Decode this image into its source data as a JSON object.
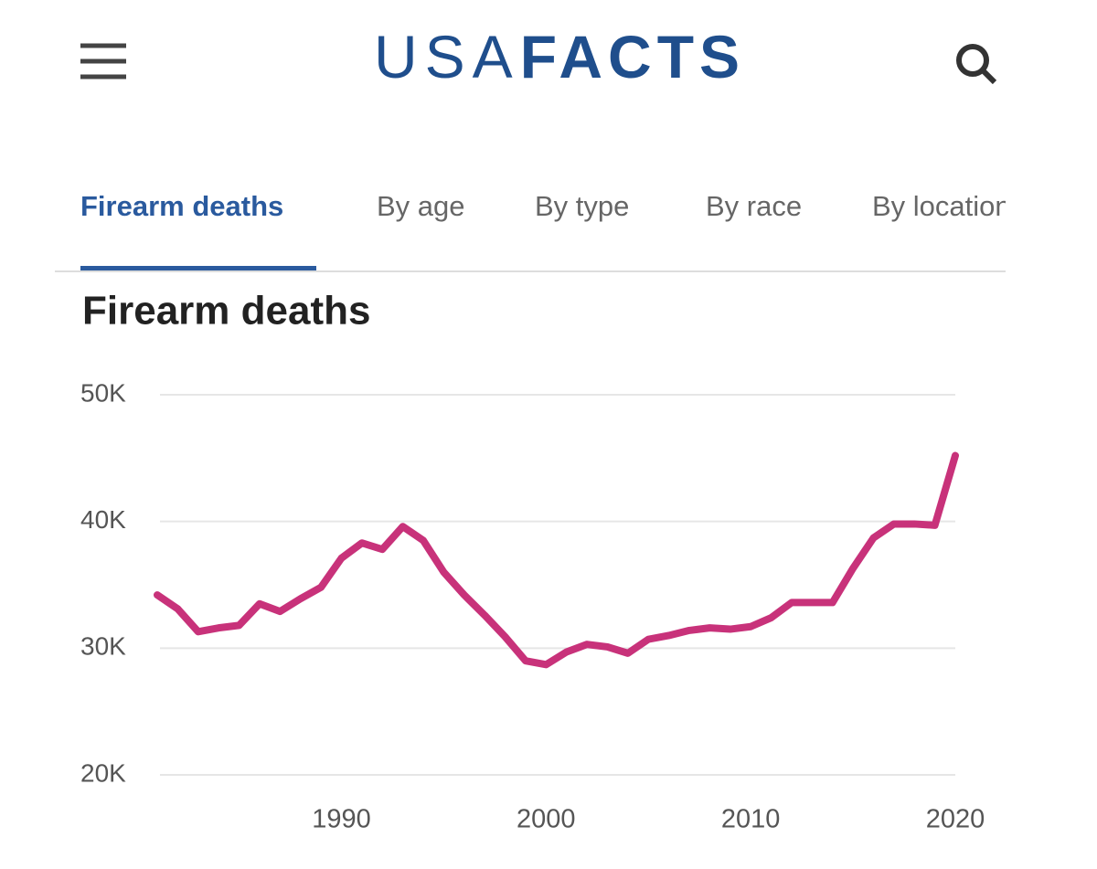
{
  "header": {
    "logo": [
      "USA",
      "FACTS"
    ]
  },
  "tabs": [
    "Firearm deaths",
    "By age",
    "By type",
    "By race",
    "By location"
  ],
  "chart_data": {
    "type": "line",
    "title": "Firearm deaths",
    "x": [
      1981,
      1982,
      1983,
      1984,
      1985,
      1986,
      1987,
      1988,
      1989,
      1990,
      1991,
      1992,
      1993,
      1994,
      1995,
      1996,
      1997,
      1998,
      1999,
      2000,
      2001,
      2002,
      2003,
      2004,
      2005,
      2006,
      2007,
      2008,
      2009,
      2010,
      2011,
      2012,
      2013,
      2014,
      2015,
      2016,
      2017,
      2018,
      2019,
      2020
    ],
    "series": [
      {
        "name": "Firearm deaths",
        "color": "#c8327a",
        "values": [
          34200,
          33100,
          31300,
          31600,
          31800,
          33500,
          32900,
          33900,
          34800,
          37100,
          38300,
          37800,
          39600,
          38500,
          36000,
          34200,
          32600,
          30900,
          29000,
          28700,
          29700,
          30300,
          30100,
          29600,
          30700,
          31000,
          31400,
          31600,
          31500,
          31700,
          32400,
          33600,
          33600,
          33600,
          36300,
          38700,
          39800,
          39800,
          39700,
          45200
        ]
      }
    ],
    "xlim": [
      1981,
      2020
    ],
    "xticks": [
      1990,
      2000,
      2010,
      2020
    ],
    "ylim": [
      20000,
      50000
    ],
    "yticks": [
      {
        "value": 20000,
        "label": "20K"
      },
      {
        "value": 30000,
        "label": "30K"
      },
      {
        "value": 40000,
        "label": "40K"
      },
      {
        "value": 50000,
        "label": "50K"
      }
    ],
    "grid": true
  }
}
